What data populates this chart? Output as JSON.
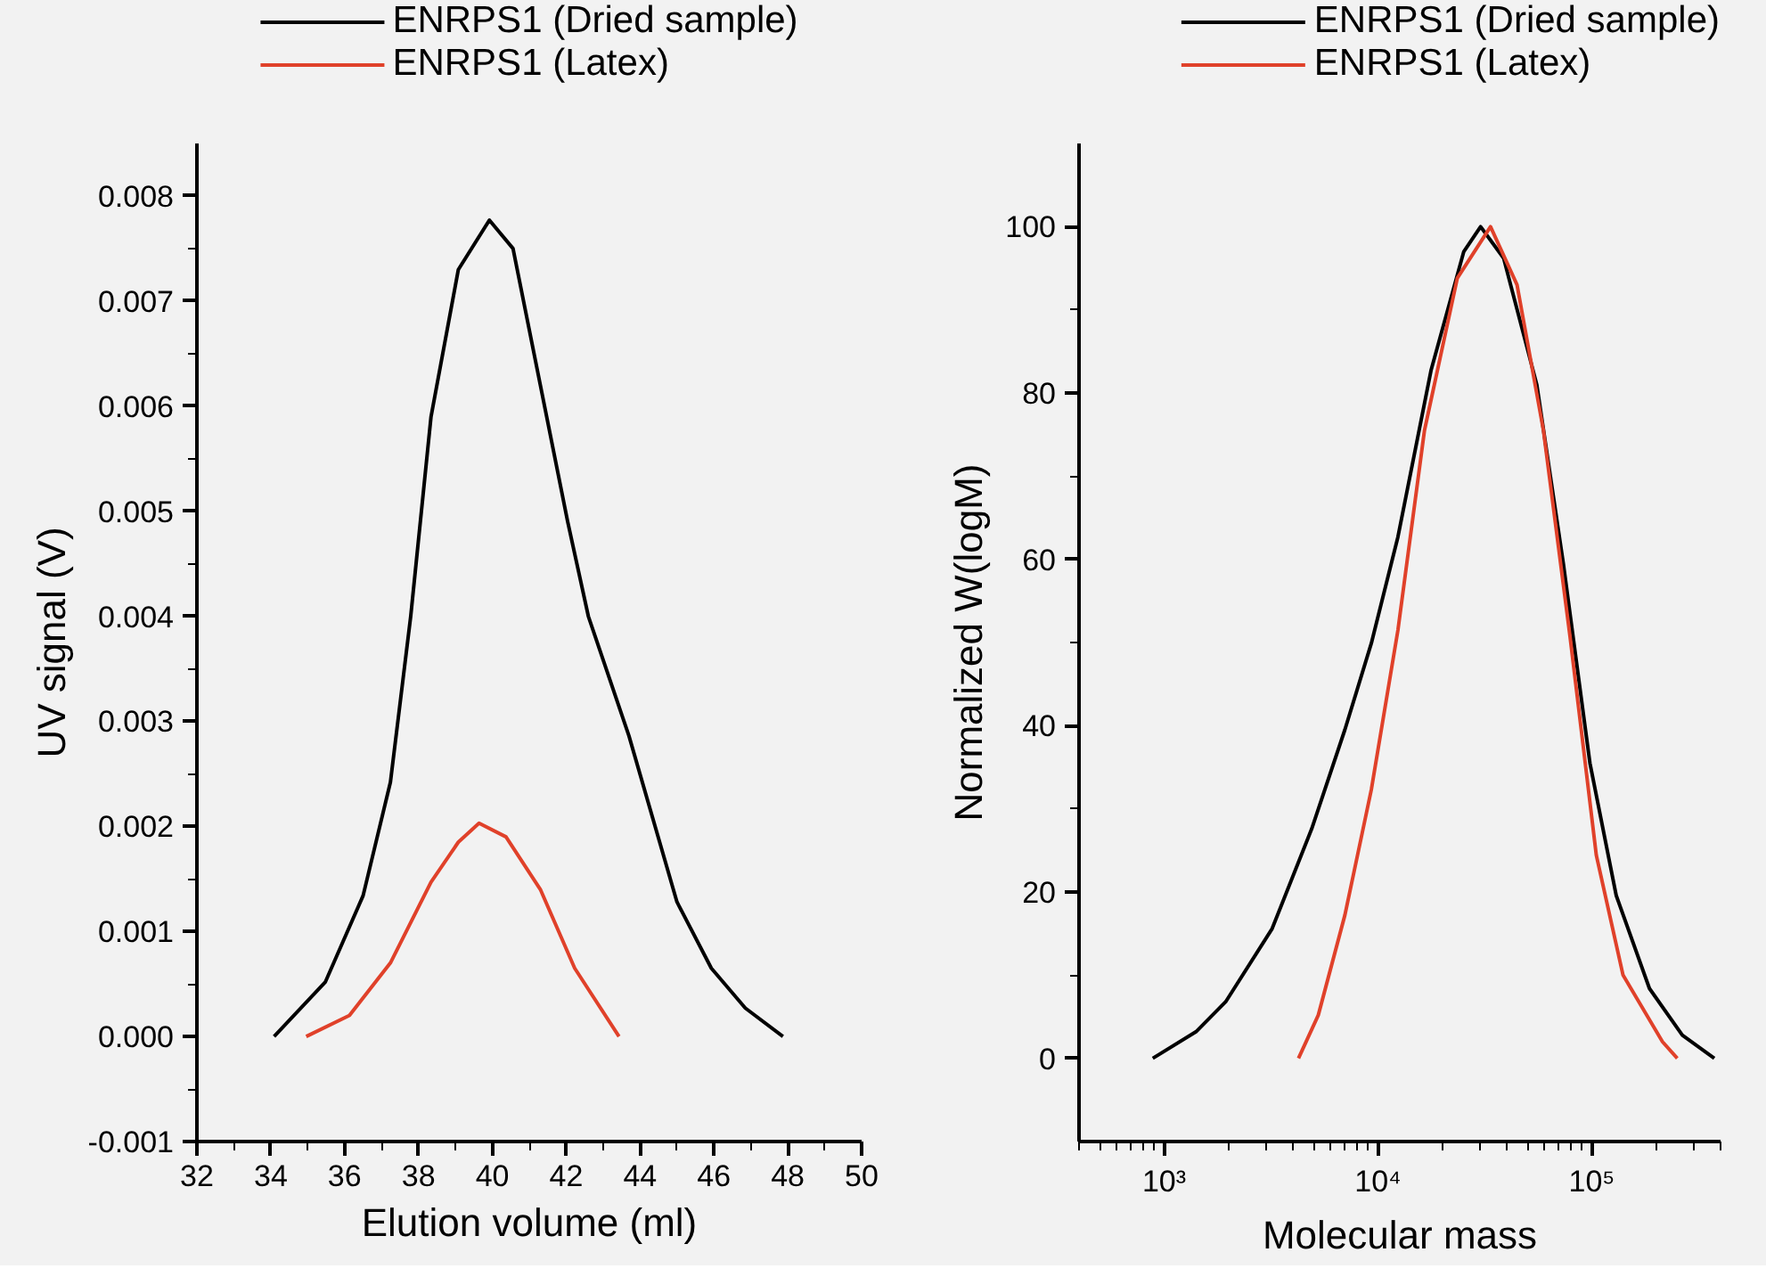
{
  "chart_data": [
    {
      "type": "line",
      "xlabel": "Elution volume (ml)",
      "ylabel": "UV signal (V)",
      "xlim": [
        32,
        50
      ],
      "ylim": [
        -0.001,
        0.0085
      ],
      "xticks": [
        32,
        34,
        36,
        38,
        40,
        42,
        44,
        46,
        48,
        50
      ],
      "yticks": [
        {
          "value": -0.001,
          "label": "-0.001"
        },
        {
          "value": 0,
          "label": "0.000"
        },
        {
          "value": 0.001,
          "label": "0.001"
        },
        {
          "value": 0.002,
          "label": "0.002"
        },
        {
          "value": 0.003,
          "label": "0.003"
        },
        {
          "value": 0.004,
          "label": "0.004"
        },
        {
          "value": 0.005,
          "label": "0.005"
        },
        {
          "value": 0.006,
          "label": "0.006"
        },
        {
          "value": 0.007,
          "label": "0.007"
        },
        {
          "value": 0.008,
          "label": "0.008"
        }
      ],
      "grid": false,
      "legend": "top",
      "marker": "none",
      "line_style": "solid",
      "series": [
        {
          "name": "ENRPS1 (Dried sample)",
          "color": "#000000",
          "x": [
            34.09,
            35.48,
            36.5,
            37.24,
            37.79,
            38.34,
            39.08,
            39.92,
            40.56,
            41.3,
            42.04,
            42.6,
            43.7,
            45.0,
            45.93,
            46.85,
            47.87
          ],
          "values": [
            0,
            0.00052,
            0.00134,
            0.00242,
            0.004,
            0.0059,
            0.0073,
            0.00777,
            0.0075,
            0.0062,
            0.0049,
            0.004,
            0.00286,
            0.00128,
            0.00065,
            0.00027,
            0
          ]
        },
        {
          "name": "ENRPS1 (Latex)",
          "color": "#e0412a",
          "x": [
            34.96,
            36.13,
            37.24,
            38.34,
            39.08,
            39.64,
            40.37,
            41.3,
            42.23,
            43.43
          ],
          "values": [
            0,
            0.0002,
            0.0007,
            0.00147,
            0.00185,
            0.00203,
            0.0019,
            0.0014,
            0.00065,
            0
          ]
        }
      ]
    },
    {
      "type": "line",
      "xlabel": "Molecular mass",
      "ylabel": "Normalized W(logM)",
      "log": "x",
      "xlim": [
        400,
        400000
      ],
      "ylim": [
        -10,
        110
      ],
      "xticks": [
        {
          "value": 1000,
          "label": "10³"
        },
        {
          "value": 10000,
          "label": "10⁴"
        },
        {
          "value": 100000,
          "label": "10⁵"
        }
      ],
      "yticks": [
        0,
        20,
        40,
        60,
        80,
        100
      ],
      "grid": false,
      "legend": "top",
      "marker": "none",
      "line_style": "solid",
      "series": [
        {
          "name": "ENRPS1 (Dried sample)",
          "color": "#000000",
          "x": [
            885,
            1410,
            1940,
            3200,
            4900,
            7000,
            9310,
            12400,
            17700,
            25200,
            30200,
            38700,
            55300,
            73600,
            98000,
            130000,
            186000,
            265000,
            374000
          ],
          "values": [
            0,
            3.2,
            6.8,
            15.6,
            27.6,
            39.5,
            49.9,
            62.7,
            82.7,
            97,
            100,
            96.2,
            81,
            59.5,
            35.5,
            19.6,
            8.4,
            2.8,
            0
          ]
        },
        {
          "name": "ENRPS1 (Latex)",
          "color": "#e0412a",
          "x": [
            4250,
            5260,
            7000,
            9310,
            12400,
            16500,
            23500,
            33600,
            44700,
            59400,
            79100,
            105000,
            140000,
            214000,
            251000
          ],
          "values": [
            0,
            5.2,
            17.2,
            32.3,
            51.5,
            75.5,
            93.8,
            100,
            93,
            75.5,
            50.7,
            24.4,
            10,
            2,
            0
          ]
        }
      ]
    }
  ]
}
